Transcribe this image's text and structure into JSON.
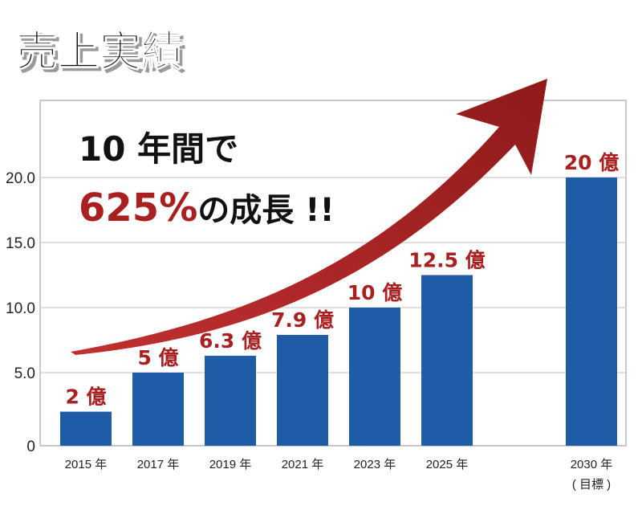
{
  "title": "売上実績",
  "annotation": {
    "line1": "10 年間で",
    "line2_highlight": "625%",
    "line2_rest": "の成長 !!"
  },
  "chart_data": {
    "type": "bar",
    "categories": [
      "2015 年",
      "2017 年",
      "2019 年",
      "2021 年",
      "2023 年",
      "2025 年",
      "2030 年"
    ],
    "category_notes": [
      "",
      "",
      "",
      "",
      "",
      "",
      "( 目標 )"
    ],
    "values": [
      2,
      5,
      6.3,
      7.9,
      10,
      12.5,
      20
    ],
    "value_labels": [
      "2 億",
      "5 億",
      "6.3 億",
      "7.9 億",
      "10 億",
      "12.5 億",
      "20 億"
    ],
    "yticks": [
      "0",
      "5.0",
      "10.0",
      "15.0",
      "20.0"
    ],
    "ytick_values": [
      0,
      5,
      10,
      15,
      20
    ],
    "ylim": [
      0,
      25
    ],
    "grid": true,
    "colors": {
      "bar": "#1f5ca8",
      "label": "#a8201f",
      "arrow": "#a8201f",
      "grid": "#d4d4d4"
    }
  }
}
